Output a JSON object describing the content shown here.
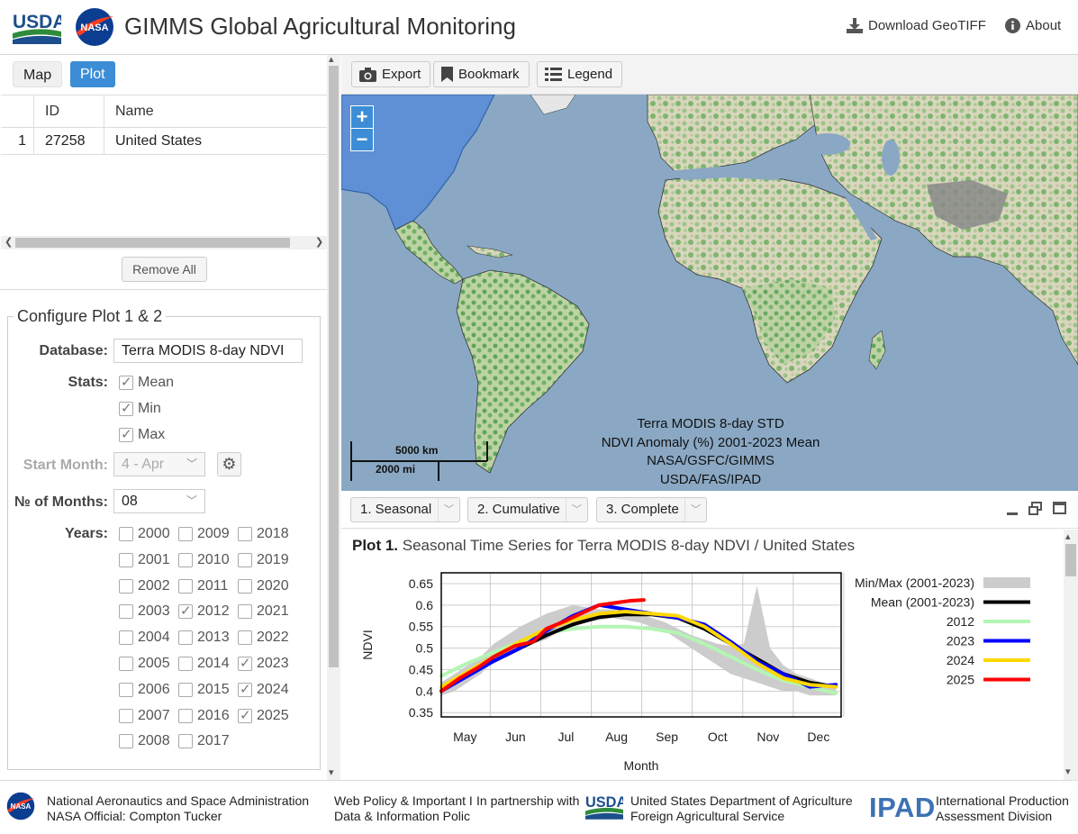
{
  "header": {
    "usda_logo_text": "USDA",
    "nasa_logo_text": "NASA",
    "title": "GIMMS Global Agricultural Monitoring",
    "download_label": "Download GeoTIFF",
    "about_label": "About"
  },
  "tabs": {
    "map": "Map",
    "plot": "Plot",
    "active": "Plot"
  },
  "table": {
    "headers": {
      "num": "",
      "id": "ID",
      "name": "Name"
    },
    "rows": [
      {
        "num": "1",
        "id": "27258",
        "name": "United States"
      }
    ]
  },
  "remove_all_label": "Remove All",
  "config": {
    "legend": "Configure Plot 1 & 2",
    "database_label": "Database:",
    "database_value": "Terra MODIS 8-day NDVI",
    "stats_label": "Stats:",
    "stats": [
      {
        "label": "Mean",
        "checked": true
      },
      {
        "label": "Min",
        "checked": true
      },
      {
        "label": "Max",
        "checked": true
      }
    ],
    "start_month_label": "Start Month:",
    "start_month_value": "4 - Apr",
    "months_label": "№ of Months:",
    "months_value": "08",
    "years_label": "Years:",
    "years": [
      {
        "label": "2000",
        "checked": false
      },
      {
        "label": "2001",
        "checked": false
      },
      {
        "label": "2002",
        "checked": false
      },
      {
        "label": "2003",
        "checked": false
      },
      {
        "label": "2004",
        "checked": false
      },
      {
        "label": "2005",
        "checked": false
      },
      {
        "label": "2006",
        "checked": false
      },
      {
        "label": "2007",
        "checked": false
      },
      {
        "label": "2008",
        "checked": false
      },
      {
        "label": "2009",
        "checked": false
      },
      {
        "label": "2010",
        "checked": false
      },
      {
        "label": "2011",
        "checked": false
      },
      {
        "label": "2012",
        "checked": true
      },
      {
        "label": "2013",
        "checked": false
      },
      {
        "label": "2014",
        "checked": false
      },
      {
        "label": "2015",
        "checked": false
      },
      {
        "label": "2016",
        "checked": false
      },
      {
        "label": "2017",
        "checked": false
      },
      {
        "label": "2018",
        "checked": false
      },
      {
        "label": "2019",
        "checked": false
      },
      {
        "label": "2020",
        "checked": false
      },
      {
        "label": "2021",
        "checked": false
      },
      {
        "label": "2022",
        "checked": false
      },
      {
        "label": "2023",
        "checked": true
      },
      {
        "label": "2024",
        "checked": true
      },
      {
        "label": "2025",
        "checked": true
      }
    ]
  },
  "map_toolbar": {
    "export": "Export",
    "bookmark": "Bookmark",
    "legend": "Legend"
  },
  "map": {
    "zoom_in": "+",
    "zoom_out": "−",
    "caption": [
      "Terra MODIS 8-day STD",
      "NDVI Anomaly (%) 2001-2023 Mean",
      "NASA/GSFC/GIMMS",
      "USDA/FAS/IPAD"
    ],
    "scale_km": "5000 km",
    "scale_mi": "2000 mi"
  },
  "plot_tabs": [
    "1. Seasonal",
    "2. Cumulative",
    "3. Complete"
  ],
  "plot": {
    "title_bold": "Plot 1.",
    "title_rest": "Seasonal Time Series for Terra MODIS 8-day NDVI / United States"
  },
  "chart_data": {
    "type": "line",
    "ylabel": "NDVI",
    "xlabel": "Month",
    "x_ticks": [
      "May",
      "Jun",
      "Jul",
      "Aug",
      "Sep",
      "Oct",
      "Nov",
      "Dec"
    ],
    "y_ticks": [
      0.35,
      0.4,
      0.45,
      0.5,
      0.55,
      0.6,
      0.65
    ],
    "ylim": [
      0.34,
      0.675
    ],
    "xlim": [
      0.0,
      7.6
    ],
    "grid": true,
    "legend_position": "right",
    "series": [
      {
        "name": "Min/Max (2001-2023)",
        "color": "#cccccc",
        "kind": "band",
        "x": [
          0,
          0.25,
          0.5,
          0.75,
          1,
          1.25,
          1.5,
          1.75,
          2,
          2.25,
          2.5,
          2.75,
          3,
          3.25,
          3.5,
          3.75,
          4,
          4.25,
          4.5,
          4.75,
          5,
          5.25,
          5.5,
          5.75,
          6,
          6.25,
          6.5,
          6.75,
          7,
          7.25,
          7.5
        ],
        "low": [
          0.39,
          0.4,
          0.42,
          0.44,
          0.47,
          0.49,
          0.5,
          0.51,
          0.52,
          0.54,
          0.55,
          0.56,
          0.565,
          0.57,
          0.565,
          0.56,
          0.55,
          0.54,
          0.52,
          0.5,
          0.48,
          0.46,
          0.44,
          0.43,
          0.42,
          0.41,
          0.4,
          0.4,
          0.39,
          0.39,
          0.39
        ],
        "high": [
          0.42,
          0.44,
          0.46,
          0.48,
          0.51,
          0.53,
          0.55,
          0.565,
          0.58,
          0.59,
          0.6,
          0.595,
          0.59,
          0.59,
          0.585,
          0.58,
          0.57,
          0.56,
          0.545,
          0.53,
          0.52,
          0.51,
          0.505,
          0.51,
          0.645,
          0.5,
          0.46,
          0.44,
          0.43,
          0.42,
          0.41
        ]
      },
      {
        "name": "Mean (2001-2023)",
        "color": "#000000",
        "x": [
          0,
          0.5,
          1,
          1.5,
          2,
          2.5,
          3,
          3.5,
          4,
          4.5,
          5,
          5.5,
          6,
          6.5,
          7,
          7.5
        ],
        "values": [
          0.4,
          0.44,
          0.47,
          0.5,
          0.53,
          0.555,
          0.572,
          0.578,
          0.578,
          0.57,
          0.545,
          0.51,
          0.475,
          0.44,
          0.42,
          0.41
        ]
      },
      {
        "name": "2012",
        "color": "#b3f5b3",
        "x": [
          0,
          0.5,
          1,
          1.5,
          2,
          2.5,
          3,
          3.5,
          4,
          4.5,
          5,
          5.5,
          6,
          6.5,
          7,
          7.5
        ],
        "values": [
          0.435,
          0.465,
          0.49,
          0.515,
          0.535,
          0.545,
          0.55,
          0.55,
          0.545,
          0.535,
          0.51,
          0.48,
          0.45,
          0.425,
          0.41,
          0.395
        ]
      },
      {
        "name": "2023",
        "color": "#0000ff",
        "x": [
          0,
          0.5,
          1,
          1.5,
          2,
          2.5,
          3,
          3.5,
          4,
          4.5,
          5,
          5.5,
          6,
          6.5,
          7,
          7.5
        ],
        "values": [
          0.4,
          0.435,
          0.47,
          0.5,
          0.54,
          0.575,
          0.6,
          0.59,
          0.58,
          0.57,
          0.555,
          0.515,
          0.47,
          0.44,
          0.41,
          0.415
        ]
      },
      {
        "name": "2024",
        "color": "#ffd700",
        "x": [
          0,
          0.5,
          1,
          1.5,
          2,
          2.5,
          3,
          3.5,
          4,
          4.5,
          5,
          5.5,
          6,
          6.5,
          7,
          7.5
        ],
        "values": [
          0.41,
          0.445,
          0.48,
          0.515,
          0.545,
          0.565,
          0.58,
          0.585,
          0.58,
          0.575,
          0.55,
          0.51,
          0.465,
          0.43,
          0.415,
          0.41
        ]
      },
      {
        "name": "2025",
        "color": "#ff0000",
        "x": [
          0,
          0.35,
          0.7,
          1,
          1.4,
          1.75,
          2,
          2.3,
          2.65,
          3,
          3.3,
          3.6,
          3.85
        ],
        "values": [
          0.4,
          0.43,
          0.455,
          0.48,
          0.505,
          0.515,
          0.545,
          0.56,
          0.58,
          0.6,
          0.605,
          0.61,
          0.612
        ]
      }
    ]
  },
  "footer": {
    "nasa_name": "National Aeronautics and Space Administration",
    "nasa_official": "NASA Official: Compton Tucker",
    "web_policy": "Web Policy & Important Il",
    "data_policy": "Data & Information Polic",
    "in_partnership": "In partnership with",
    "usda_name": "United States Department of Agriculture",
    "usda_fas": "Foreign Agricultural Service",
    "ipad_logo": "IPAD",
    "ipad_name": "International Production",
    "ipad_division": "Assessment Division"
  }
}
